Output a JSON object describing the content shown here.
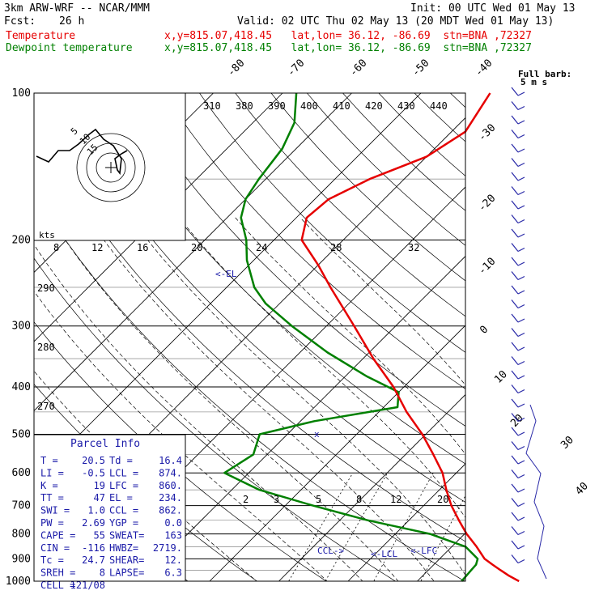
{
  "header": {
    "model": "3km ARW-WRF -- NCAR/MMM",
    "init": "Init: 00 UTC Wed 01 May 13",
    "fcst_label": "Fcst:",
    "fcst_value": "26 h",
    "valid": "Valid: 02 UTC Thu 02 May 13 (20 MDT Wed 01 May 13)",
    "temp_label": "Temperature",
    "dew_label": "Dewpoint temperature",
    "location": "x,y=815.07,418.45   lat,lon= 36.12, -86.69  stn=BNA ,72327"
  },
  "chart_data": {
    "type": "skew-t",
    "pressure_ticks": [
      "100",
      "200",
      "300",
      "400",
      "500",
      "600",
      "700",
      "800",
      "900",
      "1000"
    ],
    "temp_ticks": [
      "-80",
      "-70",
      "-60",
      "-50",
      "-40",
      "-30",
      "-20",
      "-10",
      "0",
      "10",
      "20",
      "30",
      "40"
    ],
    "theta_labels": [
      "310",
      "380",
      "390",
      "400",
      "410",
      "420",
      "430",
      "440"
    ],
    "theta_left_labels": [
      "290",
      "280",
      "270"
    ],
    "mixing_ratio_labels": [
      "2",
      "3",
      "5",
      "8",
      "12",
      "20"
    ],
    "hodo_speed_labels": [
      "8",
      "12",
      "16",
      "20",
      "24",
      "28",
      "32"
    ],
    "hodo_units": "kts",
    "hodo_ring_labels": [
      "5",
      "10",
      "15"
    ],
    "barb_legend": [
      "Full barb:",
      "5 m s"
    ],
    "el_label": "EL",
    "ccl_label": "CCL",
    "lcl_label": "LCL",
    "lfc_label": "LFC",
    "temperature_profile": [
      [
        1000,
        24.7
      ],
      [
        975,
        22.5
      ],
      [
        950,
        20.5
      ],
      [
        925,
        18.5
      ],
      [
        900,
        16.5
      ],
      [
        850,
        13.6
      ],
      [
        800,
        10.3
      ],
      [
        750,
        7.2
      ],
      [
        700,
        4.0
      ],
      [
        650,
        1.0
      ],
      [
        600,
        -2.0
      ],
      [
        550,
        -6.0
      ],
      [
        500,
        -10.5
      ],
      [
        450,
        -16.0
      ],
      [
        400,
        -21.5
      ],
      [
        350,
        -28.5
      ],
      [
        300,
        -36.0
      ],
      [
        250,
        -45.0
      ],
      [
        225,
        -50.0
      ],
      [
        200,
        -56.0
      ],
      [
        180,
        -58.5
      ],
      [
        165,
        -58.0
      ],
      [
        150,
        -55.0
      ],
      [
        135,
        -50.0
      ],
      [
        120,
        -48.0
      ],
      [
        100,
        -50.0
      ]
    ],
    "dewpoint_profile": [
      [
        1000,
        16.4
      ],
      [
        975,
        16.3
      ],
      [
        950,
        16.2
      ],
      [
        925,
        16.1
      ],
      [
        900,
        15.5
      ],
      [
        850,
        12.0
      ],
      [
        800,
        5.0
      ],
      [
        750,
        -6.0
      ],
      [
        700,
        -16.0
      ],
      [
        650,
        -26.0
      ],
      [
        600,
        -33.5
      ],
      [
        550,
        -32.0
      ],
      [
        500,
        -34.0
      ],
      [
        470,
        -28.0
      ],
      [
        440,
        -18.0
      ],
      [
        410,
        -20.0
      ],
      [
        380,
        -27.0
      ],
      [
        340,
        -36.0
      ],
      [
        300,
        -45.0
      ],
      [
        270,
        -52.0
      ],
      [
        250,
        -56.0
      ],
      [
        220,
        -61.0
      ],
      [
        200,
        -64.0
      ],
      [
        180,
        -68.0
      ],
      [
        165,
        -70.0
      ],
      [
        150,
        -71.0
      ],
      [
        130,
        -72.0
      ],
      [
        115,
        -74.0
      ],
      [
        100,
        -78.0
      ]
    ]
  },
  "parcel_info": {
    "title": "Parcel Info",
    "rows": [
      [
        "T  =",
        "20.5",
        "Td =",
        "16.4"
      ],
      [
        "LI =",
        "-0.5",
        "LCL =",
        "874."
      ],
      [
        "K  =",
        "19",
        "LFC =",
        "860."
      ],
      [
        "TT =",
        "47",
        "EL  =",
        "234."
      ],
      [
        "SWI =",
        "1.0",
        "CCL =",
        "862."
      ],
      [
        "PW =",
        "2.69",
        "YGP =",
        "0.0"
      ],
      [
        "CAPE =",
        "55",
        "SWEAT=",
        "163"
      ],
      [
        "CIN =",
        "-116",
        "HWBZ=",
        "2719."
      ],
      [
        "Tc =",
        "24.7",
        "SHEAR=",
        "12."
      ],
      [
        "SREH =",
        "8",
        "LAPSE=",
        "6.3"
      ],
      [
        "CELL =",
        "121/08",
        "",
        ""
      ]
    ]
  }
}
